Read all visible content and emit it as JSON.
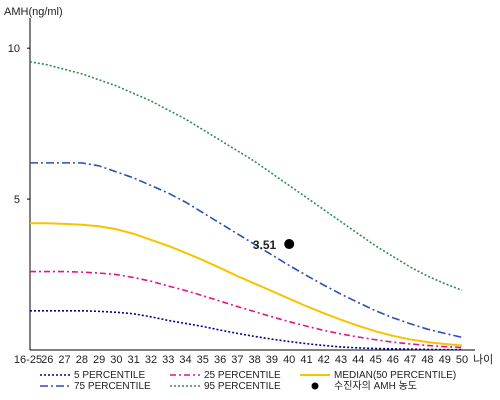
{
  "chart_data": {
    "type": "line",
    "ylabel": "AMH(ng/ml)",
    "xlabel": "나이",
    "ylim": [
      0,
      11
    ],
    "y_ticks": [
      5,
      10
    ],
    "x": [
      "16-25",
      "26",
      "27",
      "28",
      "29",
      "30",
      "31",
      "32",
      "33",
      "34",
      "35",
      "36",
      "37",
      "38",
      "39",
      "40",
      "41",
      "42",
      "43",
      "44",
      "45",
      "46",
      "47",
      "48",
      "49",
      "50"
    ],
    "series": [
      {
        "name": "5 PERCENTILE",
        "color": "#00008b",
        "dash": "2,2",
        "values": [
          1.3,
          1.3,
          1.3,
          1.3,
          1.28,
          1.25,
          1.2,
          1.1,
          0.98,
          0.88,
          0.78,
          0.66,
          0.55,
          0.45,
          0.36,
          0.28,
          0.21,
          0.15,
          0.1,
          0.07,
          0.05,
          0.04,
          0.03,
          0.02,
          0.01,
          0.01
        ]
      },
      {
        "name": "25 PERCENTILE",
        "color": "#e0148c",
        "dash": "6,3,2,3",
        "values": [
          2.6,
          2.6,
          2.6,
          2.58,
          2.55,
          2.5,
          2.4,
          2.28,
          2.12,
          1.97,
          1.8,
          1.62,
          1.44,
          1.27,
          1.1,
          0.94,
          0.79,
          0.65,
          0.53,
          0.43,
          0.34,
          0.26,
          0.2,
          0.15,
          0.11,
          0.08
        ]
      },
      {
        "name": "MEDIAN(50 PERCENTILE)",
        "color": "#f5c400",
        "dash": "",
        "values": [
          4.2,
          4.2,
          4.18,
          4.15,
          4.1,
          4.0,
          3.85,
          3.65,
          3.45,
          3.22,
          2.98,
          2.72,
          2.45,
          2.2,
          1.95,
          1.7,
          1.45,
          1.22,
          1.0,
          0.8,
          0.62,
          0.47,
          0.35,
          0.26,
          0.2,
          0.15
        ]
      },
      {
        "name": "75 PERCENTILE",
        "color": "#2b4fb5",
        "dash": "8,3,2,3",
        "values": [
          6.2,
          6.2,
          6.2,
          6.2,
          6.1,
          5.9,
          5.7,
          5.45,
          5.2,
          4.9,
          4.55,
          4.2,
          3.85,
          3.5,
          3.15,
          2.8,
          2.47,
          2.15,
          1.85,
          1.57,
          1.3,
          1.07,
          0.87,
          0.69,
          0.55,
          0.42
        ]
      },
      {
        "name": "95 PERCENTILE",
        "color": "#2e8b57",
        "dash": "2,2",
        "values": [
          9.55,
          9.45,
          9.3,
          9.15,
          8.95,
          8.75,
          8.5,
          8.25,
          7.95,
          7.65,
          7.3,
          6.95,
          6.6,
          6.25,
          5.85,
          5.45,
          5.05,
          4.65,
          4.25,
          3.85,
          3.45,
          3.1,
          2.75,
          2.45,
          2.2,
          1.98
        ]
      }
    ],
    "patient_point": {
      "label": "수진자의 AMH 농도",
      "x": "40",
      "y": 3.51,
      "value_label": "3.51",
      "color": "#000000"
    }
  }
}
